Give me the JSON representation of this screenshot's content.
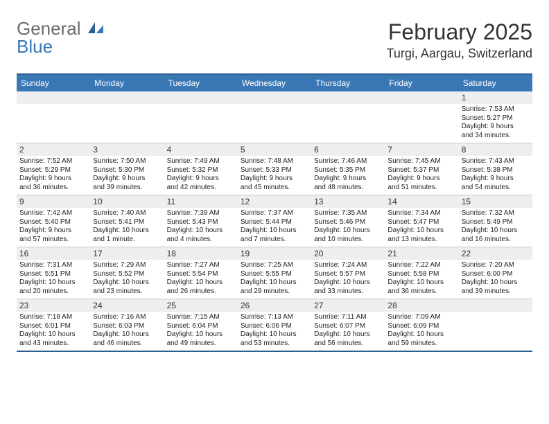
{
  "logo": {
    "word1": "General",
    "word2": "Blue"
  },
  "title": "February 2025",
  "location": "Turgi, Aargau, Switzerland",
  "weekday_header_bg": "#3a77b5",
  "weekday_header_text": "#ffffff",
  "daybar_bg": "#eceeef",
  "border_color": "#c8c8c8",
  "accent_border": "#2f5f91",
  "weekdays": [
    "Sunday",
    "Monday",
    "Tuesday",
    "Wednesday",
    "Thursday",
    "Friday",
    "Saturday"
  ],
  "weeks": [
    [
      {
        "day": "",
        "sunrise": "",
        "sunset": "",
        "daylight1": "",
        "daylight2": ""
      },
      {
        "day": "",
        "sunrise": "",
        "sunset": "",
        "daylight1": "",
        "daylight2": ""
      },
      {
        "day": "",
        "sunrise": "",
        "sunset": "",
        "daylight1": "",
        "daylight2": ""
      },
      {
        "day": "",
        "sunrise": "",
        "sunset": "",
        "daylight1": "",
        "daylight2": ""
      },
      {
        "day": "",
        "sunrise": "",
        "sunset": "",
        "daylight1": "",
        "daylight2": ""
      },
      {
        "day": "",
        "sunrise": "",
        "sunset": "",
        "daylight1": "",
        "daylight2": ""
      },
      {
        "day": "1",
        "sunrise": "Sunrise: 7:53 AM",
        "sunset": "Sunset: 5:27 PM",
        "daylight1": "Daylight: 9 hours",
        "daylight2": "and 34 minutes."
      }
    ],
    [
      {
        "day": "2",
        "sunrise": "Sunrise: 7:52 AM",
        "sunset": "Sunset: 5:29 PM",
        "daylight1": "Daylight: 9 hours",
        "daylight2": "and 36 minutes."
      },
      {
        "day": "3",
        "sunrise": "Sunrise: 7:50 AM",
        "sunset": "Sunset: 5:30 PM",
        "daylight1": "Daylight: 9 hours",
        "daylight2": "and 39 minutes."
      },
      {
        "day": "4",
        "sunrise": "Sunrise: 7:49 AM",
        "sunset": "Sunset: 5:32 PM",
        "daylight1": "Daylight: 9 hours",
        "daylight2": "and 42 minutes."
      },
      {
        "day": "5",
        "sunrise": "Sunrise: 7:48 AM",
        "sunset": "Sunset: 5:33 PM",
        "daylight1": "Daylight: 9 hours",
        "daylight2": "and 45 minutes."
      },
      {
        "day": "6",
        "sunrise": "Sunrise: 7:46 AM",
        "sunset": "Sunset: 5:35 PM",
        "daylight1": "Daylight: 9 hours",
        "daylight2": "and 48 minutes."
      },
      {
        "day": "7",
        "sunrise": "Sunrise: 7:45 AM",
        "sunset": "Sunset: 5:37 PM",
        "daylight1": "Daylight: 9 hours",
        "daylight2": "and 51 minutes."
      },
      {
        "day": "8",
        "sunrise": "Sunrise: 7:43 AM",
        "sunset": "Sunset: 5:38 PM",
        "daylight1": "Daylight: 9 hours",
        "daylight2": "and 54 minutes."
      }
    ],
    [
      {
        "day": "9",
        "sunrise": "Sunrise: 7:42 AM",
        "sunset": "Sunset: 5:40 PM",
        "daylight1": "Daylight: 9 hours",
        "daylight2": "and 57 minutes."
      },
      {
        "day": "10",
        "sunrise": "Sunrise: 7:40 AM",
        "sunset": "Sunset: 5:41 PM",
        "daylight1": "Daylight: 10 hours",
        "daylight2": "and 1 minute."
      },
      {
        "day": "11",
        "sunrise": "Sunrise: 7:39 AM",
        "sunset": "Sunset: 5:43 PM",
        "daylight1": "Daylight: 10 hours",
        "daylight2": "and 4 minutes."
      },
      {
        "day": "12",
        "sunrise": "Sunrise: 7:37 AM",
        "sunset": "Sunset: 5:44 PM",
        "daylight1": "Daylight: 10 hours",
        "daylight2": "and 7 minutes."
      },
      {
        "day": "13",
        "sunrise": "Sunrise: 7:35 AM",
        "sunset": "Sunset: 5:46 PM",
        "daylight1": "Daylight: 10 hours",
        "daylight2": "and 10 minutes."
      },
      {
        "day": "14",
        "sunrise": "Sunrise: 7:34 AM",
        "sunset": "Sunset: 5:47 PM",
        "daylight1": "Daylight: 10 hours",
        "daylight2": "and 13 minutes."
      },
      {
        "day": "15",
        "sunrise": "Sunrise: 7:32 AM",
        "sunset": "Sunset: 5:49 PM",
        "daylight1": "Daylight: 10 hours",
        "daylight2": "and 16 minutes."
      }
    ],
    [
      {
        "day": "16",
        "sunrise": "Sunrise: 7:31 AM",
        "sunset": "Sunset: 5:51 PM",
        "daylight1": "Daylight: 10 hours",
        "daylight2": "and 20 minutes."
      },
      {
        "day": "17",
        "sunrise": "Sunrise: 7:29 AM",
        "sunset": "Sunset: 5:52 PM",
        "daylight1": "Daylight: 10 hours",
        "daylight2": "and 23 minutes."
      },
      {
        "day": "18",
        "sunrise": "Sunrise: 7:27 AM",
        "sunset": "Sunset: 5:54 PM",
        "daylight1": "Daylight: 10 hours",
        "daylight2": "and 26 minutes."
      },
      {
        "day": "19",
        "sunrise": "Sunrise: 7:25 AM",
        "sunset": "Sunset: 5:55 PM",
        "daylight1": "Daylight: 10 hours",
        "daylight2": "and 29 minutes."
      },
      {
        "day": "20",
        "sunrise": "Sunrise: 7:24 AM",
        "sunset": "Sunset: 5:57 PM",
        "daylight1": "Daylight: 10 hours",
        "daylight2": "and 33 minutes."
      },
      {
        "day": "21",
        "sunrise": "Sunrise: 7:22 AM",
        "sunset": "Sunset: 5:58 PM",
        "daylight1": "Daylight: 10 hours",
        "daylight2": "and 36 minutes."
      },
      {
        "day": "22",
        "sunrise": "Sunrise: 7:20 AM",
        "sunset": "Sunset: 6:00 PM",
        "daylight1": "Daylight: 10 hours",
        "daylight2": "and 39 minutes."
      }
    ],
    [
      {
        "day": "23",
        "sunrise": "Sunrise: 7:18 AM",
        "sunset": "Sunset: 6:01 PM",
        "daylight1": "Daylight: 10 hours",
        "daylight2": "and 43 minutes."
      },
      {
        "day": "24",
        "sunrise": "Sunrise: 7:16 AM",
        "sunset": "Sunset: 6:03 PM",
        "daylight1": "Daylight: 10 hours",
        "daylight2": "and 46 minutes."
      },
      {
        "day": "25",
        "sunrise": "Sunrise: 7:15 AM",
        "sunset": "Sunset: 6:04 PM",
        "daylight1": "Daylight: 10 hours",
        "daylight2": "and 49 minutes."
      },
      {
        "day": "26",
        "sunrise": "Sunrise: 7:13 AM",
        "sunset": "Sunset: 6:06 PM",
        "daylight1": "Daylight: 10 hours",
        "daylight2": "and 53 minutes."
      },
      {
        "day": "27",
        "sunrise": "Sunrise: 7:11 AM",
        "sunset": "Sunset: 6:07 PM",
        "daylight1": "Daylight: 10 hours",
        "daylight2": "and 56 minutes."
      },
      {
        "day": "28",
        "sunrise": "Sunrise: 7:09 AM",
        "sunset": "Sunset: 6:09 PM",
        "daylight1": "Daylight: 10 hours",
        "daylight2": "and 59 minutes."
      },
      {
        "day": "",
        "sunrise": "",
        "sunset": "",
        "daylight1": "",
        "daylight2": ""
      }
    ]
  ]
}
